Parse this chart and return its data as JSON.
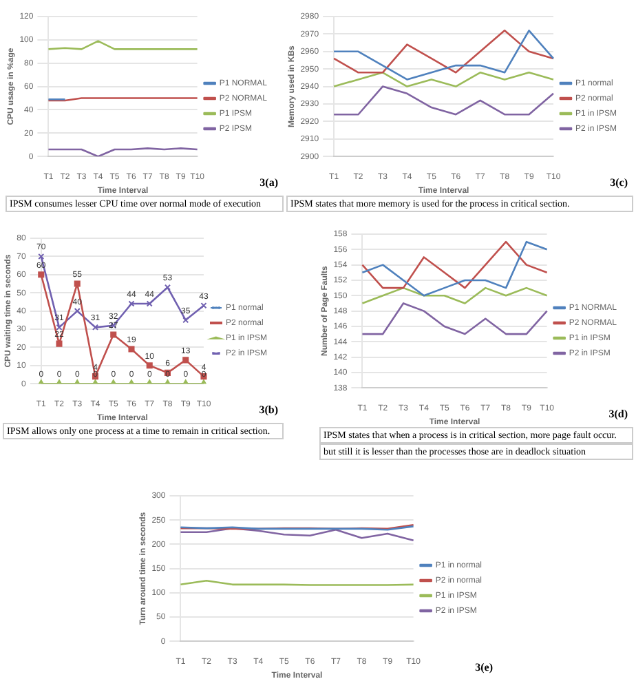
{
  "chart_data": [
    {
      "type": "line",
      "xlabel": "Time Interval",
      "ylabel": "CPU usage in %age",
      "categories": [
        "T1",
        "T2",
        "T3",
        "T4",
        "T5",
        "T6",
        "T7",
        "T8",
        "T9",
        "T10"
      ],
      "ylim": [
        0,
        120
      ],
      "yticks": [
        0,
        20,
        40,
        60,
        80,
        100,
        120
      ],
      "grid": "y",
      "legend": "right",
      "annotations": [
        "3(a)",
        "IPSM consumes lesser CPU time over normal mode of execution"
      ],
      "series": [
        {
          "name": "P1 NORMAL",
          "color": "#4f81bd",
          "values": [
            49,
            49,
            null,
            null,
            null,
            null,
            null,
            null,
            null,
            null
          ]
        },
        {
          "name": "P2 NORMAL",
          "color": "#c0504d",
          "values": [
            48,
            48,
            50,
            50,
            50,
            50,
            50,
            50,
            50,
            50
          ]
        },
        {
          "name": "P1 IPSM",
          "color": "#9bbb59",
          "values": [
            92,
            93,
            92,
            99,
            92,
            92,
            92,
            92,
            92,
            92
          ]
        },
        {
          "name": "P2 IPSM",
          "color": "#8064a2",
          "values": [
            6,
            6,
            6,
            0,
            6,
            6,
            7,
            6,
            7,
            6
          ]
        }
      ]
    },
    {
      "type": "line",
      "xlabel": "Time Interval",
      "ylabel": "Memory used in KBs",
      "categories": [
        "T1",
        "T2",
        "T3",
        "T4",
        "T5",
        "T6",
        "T7",
        "T8",
        "T9",
        "T10"
      ],
      "ylim": [
        2900,
        2980
      ],
      "yticks": [
        2900,
        2910,
        2920,
        2930,
        2940,
        2950,
        2960,
        2970,
        2980
      ],
      "grid": "y",
      "legend": "right",
      "annotations": [
        "3(c)",
        "IPSM states that more memory is used for the process in critical section."
      ],
      "series": [
        {
          "name": "P1 normal",
          "color": "#4f81bd",
          "values": [
            2960,
            2960,
            2952,
            2944,
            2948,
            2952,
            2952,
            2948,
            2972,
            2956
          ]
        },
        {
          "name": "P2 normal",
          "color": "#c0504d",
          "values": [
            2956,
            2948,
            2948,
            2964,
            2956,
            2948,
            2960,
            2972,
            2960,
            2956
          ]
        },
        {
          "name": "P1 in IPSM",
          "color": "#9bbb59",
          "values": [
            2940,
            2944,
            2948,
            2940,
            2944,
            2940,
            2948,
            2944,
            2948,
            2944
          ]
        },
        {
          "name": "P2 in IPSM",
          "color": "#8064a2",
          "values": [
            2924,
            2924,
            2940,
            2936,
            2928,
            2924,
            2932,
            2924,
            2924,
            2936
          ]
        }
      ]
    },
    {
      "type": "line",
      "xlabel": "Time Interval",
      "ylabel": "CPU waiting time in seconds",
      "categories": [
        "T1",
        "T2",
        "T3",
        "T4",
        "T5",
        "T6",
        "T7",
        "T8",
        "T9",
        "T10"
      ],
      "ylim": [
        0,
        80
      ],
      "yticks": [
        0,
        10,
        20,
        30,
        40,
        50,
        60,
        70,
        80
      ],
      "grid": "y",
      "legend": "right",
      "data_labels": true,
      "annotations": [
        "3(b)",
        "IPSM allows only one process at a time to remain in critical section."
      ],
      "series": [
        {
          "name": "P1 normal",
          "color": "#4f81bd",
          "marker": "star",
          "values": [
            null,
            null,
            null,
            null,
            null,
            null,
            null,
            null,
            null,
            null
          ]
        },
        {
          "name": "P2 normal",
          "color": "#c0504d",
          "marker": "square",
          "values": [
            60,
            22,
            55,
            4,
            27,
            19,
            10,
            6,
            13,
            4
          ]
        },
        {
          "name": "P1 in IPSM",
          "color": "#9bbb59",
          "marker": "triangle",
          "values": [
            0,
            0,
            0,
            0,
            0,
            0,
            0,
            0,
            0,
            0
          ]
        },
        {
          "name": "P2 in IPSM",
          "color": "#7060b0",
          "marker": "cross",
          "values": [
            70,
            31,
            40,
            31,
            32,
            44,
            44,
            53,
            35,
            43
          ]
        }
      ]
    },
    {
      "type": "line",
      "xlabel": "Time Interval",
      "ylabel": "Number of Page Faults",
      "categories": [
        "T1",
        "T2",
        "T3",
        "T4",
        "T5",
        "T6",
        "T7",
        "T8",
        "T9",
        "T10"
      ],
      "ylim": [
        138,
        158
      ],
      "yticks": [
        138,
        140,
        142,
        144,
        146,
        148,
        150,
        152,
        154,
        156,
        158
      ],
      "grid": "y",
      "legend": "right",
      "annotations": [
        "3(d)",
        "IPSM states that when a process is in critical section, more page fault occur.",
        "but still it is lesser than the processes those are in deadlock situation"
      ],
      "series": [
        {
          "name": "P1 NORMAL",
          "color": "#4f81bd",
          "values": [
            153,
            154,
            152,
            150,
            151,
            152,
            152,
            151,
            157,
            156
          ]
        },
        {
          "name": "P2 NORMAL",
          "color": "#c0504d",
          "values": [
            154,
            151,
            151,
            155,
            153,
            151,
            154,
            157,
            154,
            153
          ]
        },
        {
          "name": "P1 in IPSM",
          "color": "#9bbb59",
          "values": [
            149,
            150,
            151,
            150,
            150,
            149,
            151,
            150,
            151,
            150
          ]
        },
        {
          "name": "P2 in IPSM",
          "color": "#8064a2",
          "values": [
            145,
            145,
            149,
            148,
            146,
            145,
            147,
            145,
            145,
            148
          ]
        }
      ]
    },
    {
      "type": "line",
      "xlabel": "Time Interval",
      "ylabel": "Turn around time in seconds",
      "categories": [
        "T1",
        "T2",
        "T3",
        "T4",
        "T5",
        "T6",
        "T7",
        "T8",
        "T9",
        "T10"
      ],
      "ylim": [
        0,
        300
      ],
      "yticks": [
        0,
        50,
        100,
        150,
        200,
        250,
        300
      ],
      "grid": "y",
      "legend": "right",
      "annotations": [
        "3(e)"
      ],
      "series": [
        {
          "name": "P1 in normal",
          "color": "#4f81bd",
          "values": [
            235,
            233,
            235,
            232,
            232,
            232,
            232,
            232,
            230,
            237
          ]
        },
        {
          "name": "P2 in normal",
          "color": "#c0504d",
          "values": [
            233,
            233,
            232,
            232,
            233,
            233,
            232,
            233,
            232,
            240
          ]
        },
        {
          "name": "P1 in IPSM",
          "color": "#9bbb59",
          "values": [
            117,
            125,
            117,
            117,
            117,
            116,
            116,
            116,
            116,
            117
          ]
        },
        {
          "name": "P2 in IPSM",
          "color": "#8064a2",
          "values": [
            225,
            225,
            233,
            228,
            220,
            218,
            230,
            213,
            222,
            208
          ]
        }
      ]
    }
  ]
}
